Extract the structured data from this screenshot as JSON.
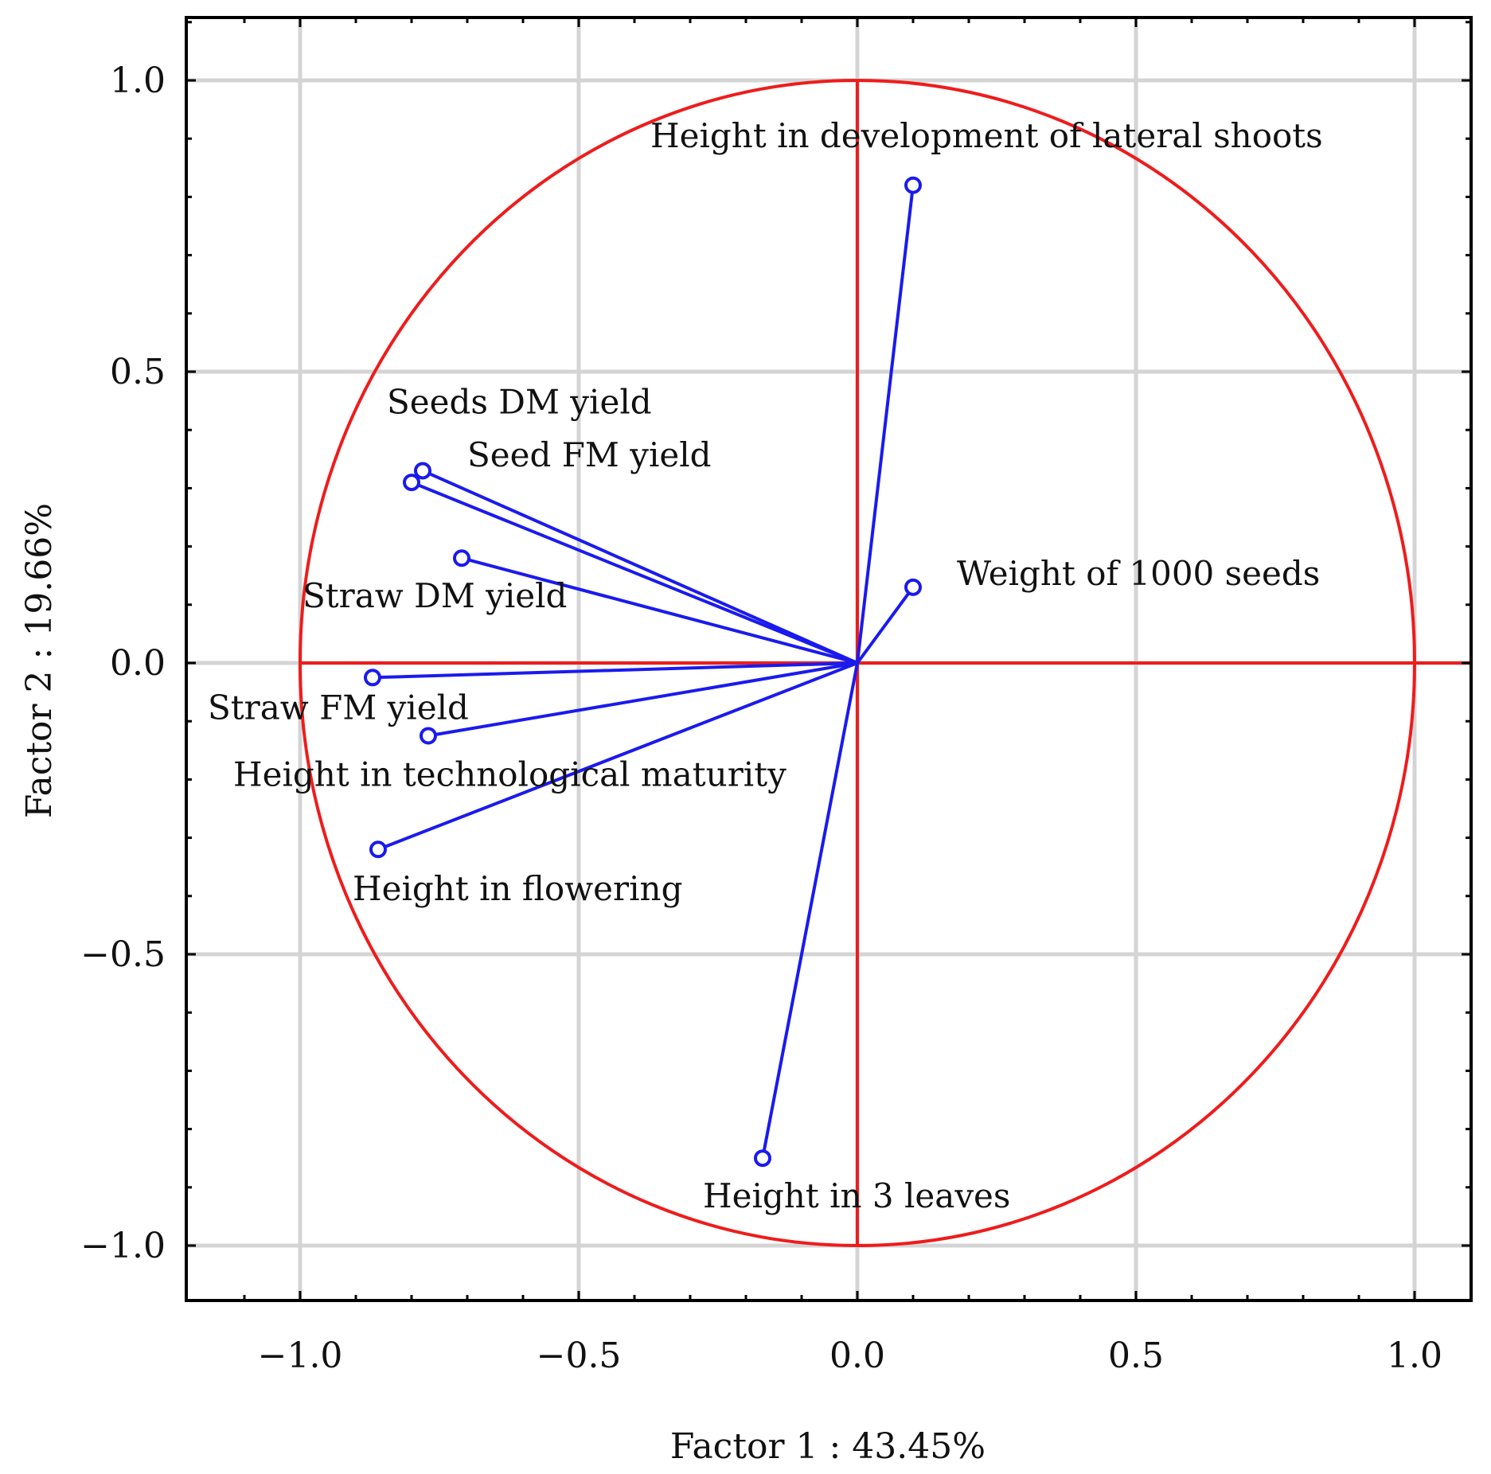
{
  "chart_data": {
    "type": "scatter",
    "subtype": "pca-correlation-circle",
    "xlabel": "Factor 1 : 43.45%",
    "ylabel": "Factor 2 : 19.66%",
    "xlim": [
      -1.2,
      1.1
    ],
    "ylim": [
      -1.1,
      1.1
    ],
    "x_ticks": [
      {
        "value": -1.0,
        "label": "−1.0"
      },
      {
        "value": -0.5,
        "label": "−0.5"
      },
      {
        "value": 0.0,
        "label": "0.0"
      },
      {
        "value": 0.5,
        "label": "0.5"
      },
      {
        "value": 1.0,
        "label": "1.0"
      }
    ],
    "y_ticks": [
      {
        "value": 1.0,
        "label": "1.0"
      },
      {
        "value": 0.5,
        "label": "0.5"
      },
      {
        "value": 0.0,
        "label": "0.0"
      },
      {
        "value": -0.5,
        "label": "−0.5"
      },
      {
        "value": -1.0,
        "label": "−1.0"
      }
    ],
    "grid": true,
    "unit_circle": {
      "radius": 1.0,
      "color": "#ee1c1c"
    },
    "vector_color": "#1a1aee",
    "points": [
      {
        "name": "Height in development of lateral shoots",
        "x": 0.1,
        "y": 0.82
      },
      {
        "name": "Seeds DM yield",
        "x": -0.78,
        "y": 0.33
      },
      {
        "name": "Seed FM yield",
        "x": -0.8,
        "y": 0.31
      },
      {
        "name": "Straw DM yield",
        "x": -0.71,
        "y": 0.18
      },
      {
        "name": "Weight of 1000 seeds",
        "x": 0.1,
        "y": 0.13
      },
      {
        "name": "Straw FM yield",
        "x": -0.87,
        "y": -0.025
      },
      {
        "name": "Height in technological maturity",
        "x": -0.77,
        "y": -0.125
      },
      {
        "name": "Height in flowering",
        "x": -0.86,
        "y": -0.32
      },
      {
        "name": "Height in 3 leaves",
        "x": -0.17,
        "y": -0.85
      }
    ]
  }
}
